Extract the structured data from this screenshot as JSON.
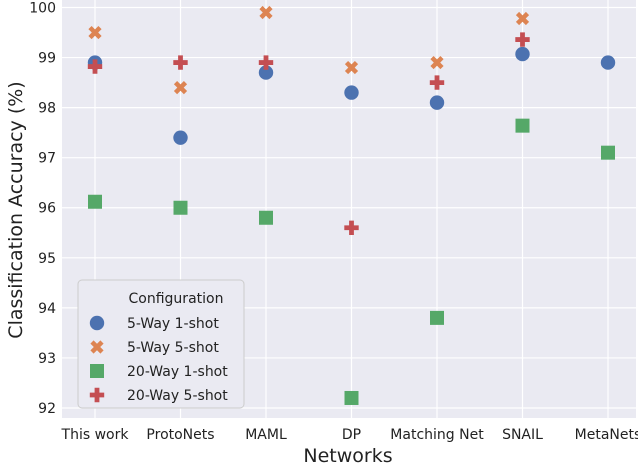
{
  "chart_data": {
    "type": "scatter",
    "title": "",
    "xlabel": "Networks",
    "ylabel": "Classification Accuracy (%)",
    "categories": [
      "This work",
      "ProtoNets",
      "MAML",
      "DP",
      "Matching Net",
      "SNAIL",
      "MetaNets"
    ],
    "ylim": [
      91.8,
      100.15
    ],
    "yticks": [
      92,
      93,
      94,
      95,
      96,
      97,
      98,
      99,
      100
    ],
    "grid": true,
    "legend": {
      "title": "Configuration",
      "position": "lower-left"
    },
    "series": [
      {
        "name": "5-Way 1-shot",
        "marker": "circle",
        "color": "#4c72b0",
        "values": [
          98.9,
          97.4,
          98.7,
          98.3,
          98.1,
          99.07,
          98.9
        ]
      },
      {
        "name": "5-Way 5-shot",
        "marker": "x",
        "color": "#dd8452",
        "values": [
          99.5,
          98.4,
          99.9,
          98.8,
          98.9,
          99.78,
          null
        ]
      },
      {
        "name": "20-Way 1-shot",
        "marker": "square",
        "color": "#55a868",
        "values": [
          96.12,
          96.0,
          95.8,
          92.2,
          93.8,
          97.64,
          97.1
        ]
      },
      {
        "name": "20-Way 5-shot",
        "marker": "plus",
        "color": "#c44e52",
        "values": [
          98.82,
          98.9,
          98.9,
          95.6,
          98.5,
          99.36,
          null
        ]
      }
    ]
  }
}
